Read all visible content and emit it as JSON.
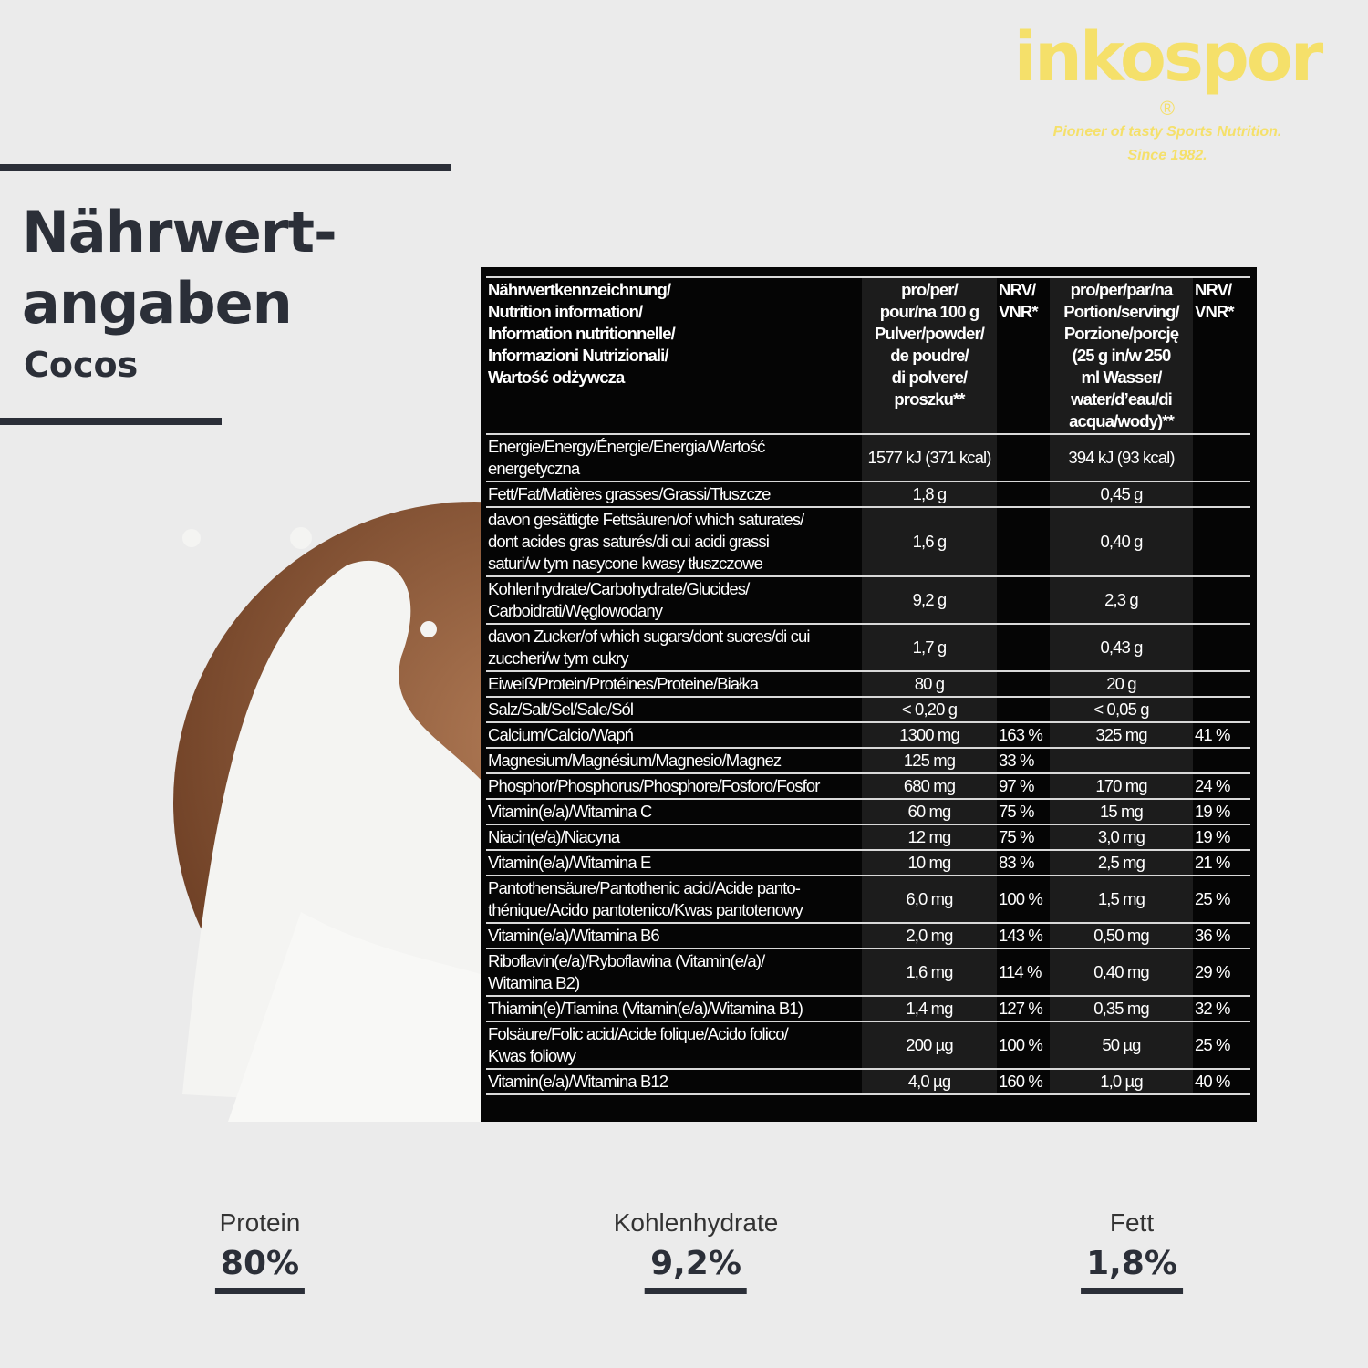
{
  "logo": {
    "brand": "inkospor",
    "registered": "®",
    "tagline": [
      "Pioneer of tasty Sports Nutrition.",
      "Since 1982."
    ]
  },
  "heading": {
    "title": [
      "Nährwert-",
      "angaben"
    ],
    "flavor": "Cocos"
  },
  "table": {
    "header": [
      "Nährwertkennzeichnung/\nNutrition information/\nInformation nutritionnelle/\nInformazioni Nutrizionali/\nWartość odżywcza",
      "pro/per/\npour/na 100 g\nPulver/powder/\nde poudre/\ndi polvere/\nproszku**",
      "NRV/\nVNR*",
      "pro/per/par/na\nPortion/serving/\nPorzione/porcję\n(25 g in/w 250\nml Wasser/\nwater/d’eau/di\nacqua/wody)**",
      "NRV/\nVNR*"
    ],
    "rows": [
      [
        "Energie/Energy/Énergie/Energia/Wartość\nenergetyczna",
        "1577 kJ (371 kcal)",
        null,
        "394 kJ (93 kcal)",
        null
      ],
      [
        "Fett/Fat/Matières grasses/Grassi/Tłuszcze",
        "1,8 g",
        null,
        "0,45 g",
        null
      ],
      [
        "davon gesättigte Fettsäuren/of which saturates/\ndont acides gras saturés/di cui acidi grassi\nsaturi/w tym nasycone kwasy tłuszczowe",
        "1,6 g",
        null,
        "0,40 g",
        null
      ],
      [
        "Kohlenhydrate/Carbohydrate/Glucides/\nCarboidrati/Węglowodany",
        "9,2 g",
        null,
        "2,3 g",
        null
      ],
      [
        "davon Zucker/of which sugars/dont sucres/di cui\nzuccheri/w tym cukry",
        "1,7 g",
        null,
        "0,43 g",
        null
      ],
      [
        "Eiweiß/Protein/Protéines/Proteine/Białka",
        "80 g",
        null,
        "20 g",
        null
      ],
      [
        "Salz/Salt/Sel/Sale/Sól",
        "< 0,20 g",
        null,
        "< 0,05 g",
        null
      ],
      [
        "Calcium/Calcio/Wapń",
        "1300 mg",
        "163 %",
        "325 mg",
        "41 %"
      ],
      [
        "Magnesium/Magnésium/Magnesio/Magnez",
        "125 mg",
        "33 %",
        null,
        null
      ],
      [
        "Phosphor/Phosphorus/Phosphore/Fosforo/Fosfor",
        "680 mg",
        "97 %",
        "170 mg",
        "24 %"
      ],
      [
        "Vitamin(e/a)/Witamina C",
        "60 mg",
        "75 %",
        "15 mg",
        "19 %"
      ],
      [
        "Niacin(e/a)/Niacyna",
        "12 mg",
        "75 %",
        "3,0 mg",
        "19 %"
      ],
      [
        "Vitamin(e/a)/Witamina E",
        "10 mg",
        "83 %",
        "2,5 mg",
        "21 %"
      ],
      [
        "Pantothensäure/Pantothenic acid/Acide panto-\nthénique/Acido pantotenico/Kwas pantotenowy",
        "6,0 mg",
        "100 %",
        "1,5 mg",
        "25 %"
      ],
      [
        "Vitamin(e/a)/Witamina B6",
        "2,0 mg",
        "143 %",
        "0,50 mg",
        "36 %"
      ],
      [
        "Riboflavin(e/a)/Ryboflawina (Vitamin(e/a)/\nWitamina B2)",
        "1,6 mg",
        "114 %",
        "0,40 mg",
        "29 %"
      ],
      [
        "Thiamin(e)/Tiamina (Vitamin(e/a)/Witamina B1)",
        "1,4 mg",
        "127 %",
        "0,35 mg",
        "32 %"
      ],
      [
        "Folsäure/Folic acid/Acide folique/Acido folico/\nKwas foliowy",
        "200 µg",
        "100 %",
        "50 µg",
        "25 %"
      ],
      [
        "Vitamin(e/a)/Witamina B12",
        "4,0 µg",
        "160 %",
        "1,0 µg",
        "40 %"
      ]
    ]
  },
  "highlights": [
    {
      "label": "Protein",
      "value": "80%"
    },
    {
      "label": "Kohlenhydrate",
      "value": "9,2%"
    },
    {
      "label": "Fett",
      "value": "1,8%"
    }
  ]
}
